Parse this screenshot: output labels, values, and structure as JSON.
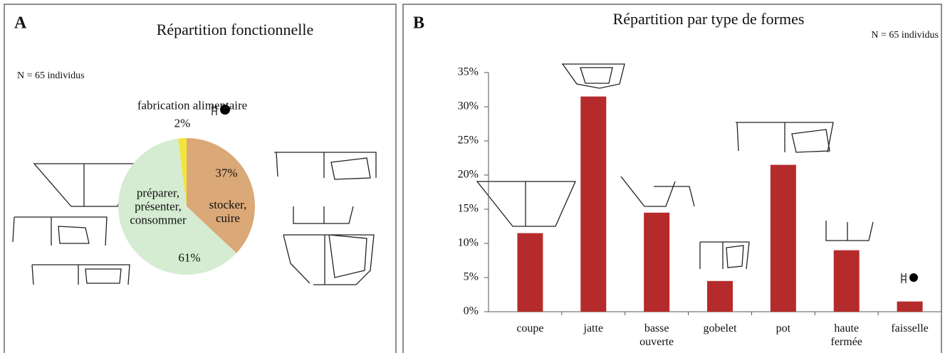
{
  "chart_data": [
    {
      "type": "pie",
      "panel": "A",
      "title": "Répartition fonctionnelle",
      "subtitle": "N = 65 individus",
      "categories": [
        "fabrication alimentaire",
        "stocker, cuire",
        "préparer, présenter, consommer"
      ],
      "values": [
        2,
        37,
        61
      ],
      "value_labels": [
        "2%",
        "37%",
        "61%"
      ],
      "colors": [
        "#f3e43c",
        "#dba877",
        "#d5ecd2"
      ]
    },
    {
      "type": "bar",
      "panel": "B",
      "title": "Répartition par type de formes",
      "subtitle": "N = 65 individus",
      "categories": [
        "coupe",
        "jatte",
        "basse ouverte",
        "gobelet",
        "pot",
        "haute fermée",
        "faisselle"
      ],
      "values": [
        11.5,
        31.5,
        14.5,
        4.5,
        21.5,
        9,
        1.5
      ],
      "color": "#b52b2b",
      "ylim": [
        0,
        35
      ],
      "yticks": [
        {
          "value": 0,
          "label": "0%"
        },
        {
          "value": 5,
          "label": "5%"
        },
        {
          "value": 10,
          "label": "10%"
        },
        {
          "value": 15,
          "label": "15%"
        },
        {
          "value": 20,
          "label": "20%"
        },
        {
          "value": 25,
          "label": "25%"
        },
        {
          "value": 30,
          "label": "30%"
        },
        {
          "value": 35,
          "label": "35%"
        }
      ]
    }
  ]
}
